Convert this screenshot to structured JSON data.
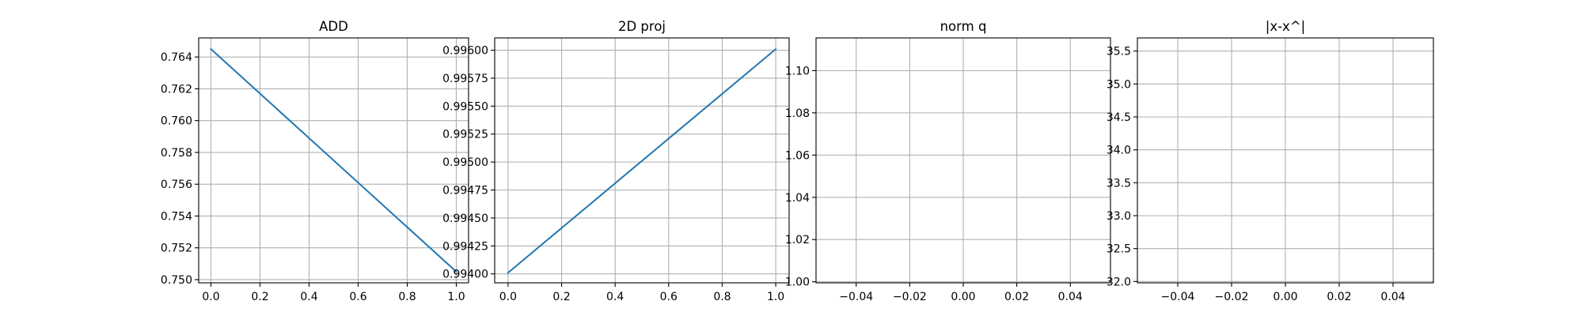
{
  "chart_data": [
    {
      "type": "line",
      "title": "ADD",
      "xlabel": "",
      "ylabel": "",
      "xlim": [
        -0.05,
        1.05
      ],
      "ylim": [
        0.7498,
        0.7652
      ],
      "grid": true,
      "x_ticks": [
        0.0,
        0.2,
        0.4,
        0.6,
        0.8,
        1.0
      ],
      "x_tick_labels": [
        "0.0",
        "0.2",
        "0.4",
        "0.6",
        "0.8",
        "1.0"
      ],
      "y_ticks": [
        0.75,
        0.752,
        0.754,
        0.756,
        0.758,
        0.76,
        0.762,
        0.764
      ],
      "y_tick_labels": [
        "0.750",
        "0.752",
        "0.754",
        "0.756",
        "0.758",
        "0.760",
        "0.762",
        "0.764"
      ],
      "series": [
        {
          "color": "#1f77b4",
          "x": [
            0,
            1
          ],
          "y": [
            0.7645,
            0.7505
          ]
        }
      ]
    },
    {
      "type": "line",
      "title": "2D proj",
      "xlabel": "",
      "ylabel": "",
      "xlim": [
        -0.05,
        1.05
      ],
      "ylim": [
        0.99392,
        0.99611
      ],
      "grid": true,
      "x_ticks": [
        0.0,
        0.2,
        0.4,
        0.6,
        0.8,
        1.0
      ],
      "x_tick_labels": [
        "0.0",
        "0.2",
        "0.4",
        "0.6",
        "0.8",
        "1.0"
      ],
      "y_ticks": [
        0.994,
        0.99425,
        0.9945,
        0.99475,
        0.995,
        0.99525,
        0.9955,
        0.99575,
        0.996
      ],
      "y_tick_labels": [
        "0.99400",
        "0.99425",
        "0.99450",
        "0.99475",
        "0.99500",
        "0.99525",
        "0.99550",
        "0.99575",
        "0.99600"
      ],
      "series": [
        {
          "color": "#1f77b4",
          "x": [
            0,
            1
          ],
          "y": [
            0.99401,
            0.99601
          ]
        }
      ]
    },
    {
      "type": "line",
      "title": "norm q",
      "xlabel": "",
      "ylabel": "",
      "xlim": [
        -0.055,
        0.055
      ],
      "ylim": [
        0.9995,
        1.1155
      ],
      "grid": true,
      "x_ticks": [
        -0.04,
        -0.02,
        0.0,
        0.02,
        0.04
      ],
      "x_tick_labels": [
        "−0.04",
        "−0.02",
        "0.00",
        "0.02",
        "0.04"
      ],
      "y_ticks": [
        1.0,
        1.02,
        1.04,
        1.06,
        1.08,
        1.1
      ],
      "y_tick_labels": [
        "1.00",
        "1.02",
        "1.04",
        "1.06",
        "1.08",
        "1.10"
      ],
      "series": []
    },
    {
      "type": "line",
      "title": "|x-x^|",
      "xlabel": "",
      "ylabel": "",
      "xlim": [
        -0.055,
        0.055
      ],
      "ylim": [
        31.98,
        35.7
      ],
      "grid": true,
      "x_ticks": [
        -0.04,
        -0.02,
        0.0,
        0.02,
        0.04
      ],
      "x_tick_labels": [
        "−0.04",
        "−0.02",
        "0.00",
        "0.02",
        "0.04"
      ],
      "y_ticks": [
        32.0,
        32.5,
        33.0,
        33.5,
        34.0,
        34.5,
        35.0,
        35.5
      ],
      "y_tick_labels": [
        "32.0",
        "32.5",
        "33.0",
        "33.5",
        "34.0",
        "34.5",
        "35.0",
        "35.5"
      ],
      "series": []
    }
  ]
}
